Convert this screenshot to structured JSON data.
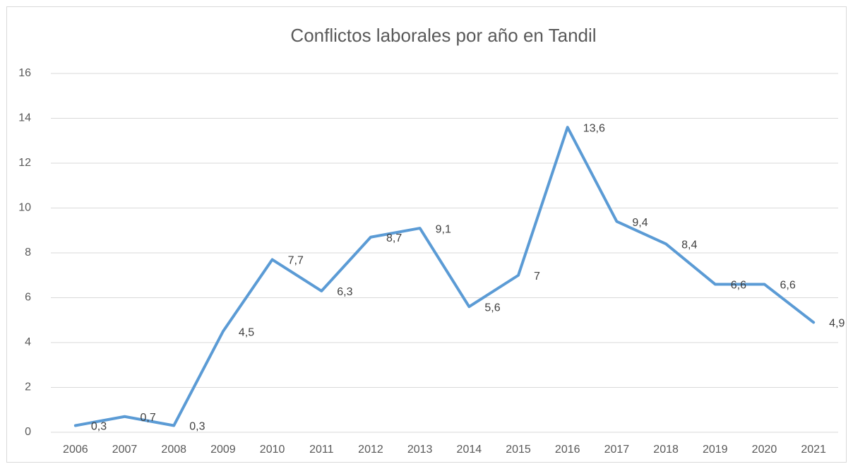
{
  "chart_data": {
    "type": "line",
    "title": "Conflictos laborales por año en Tandil",
    "categories": [
      "2006",
      "2007",
      "2008",
      "2009",
      "2010",
      "2011",
      "2012",
      "2013",
      "2014",
      "2015",
      "2016",
      "2017",
      "2018",
      "2019",
      "2020",
      "2021"
    ],
    "values": [
      0.3,
      0.7,
      0.3,
      4.5,
      7.7,
      6.3,
      8.7,
      9.1,
      5.6,
      7,
      13.6,
      9.4,
      8.4,
      6.6,
      6.6,
      4.9
    ],
    "value_labels": [
      "0,3",
      "0,7",
      "0,3",
      "4,5",
      "7,7",
      "6,3",
      "8,7",
      "9,1",
      "5,6",
      "7",
      "13,6",
      "9,4",
      "8,4",
      "6,6",
      "6,6",
      "4,9"
    ],
    "color": "#5b9bd5",
    "ylim": [
      0,
      16
    ],
    "yticks": [
      0,
      2,
      4,
      6,
      8,
      10,
      12,
      14,
      16
    ],
    "grid": true
  }
}
